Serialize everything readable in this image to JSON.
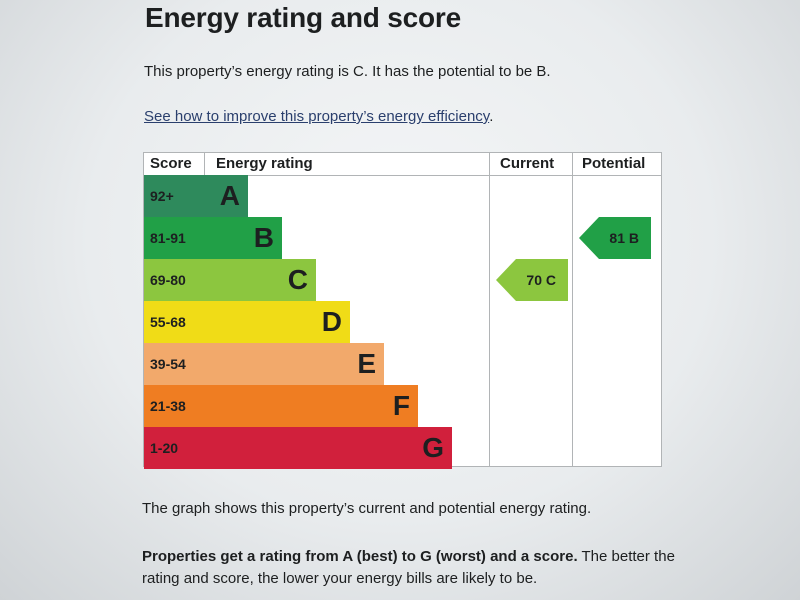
{
  "heading": "Energy rating and score",
  "rating_sentence": "This property’s energy rating is C. It has the potential to be B.",
  "improve_link": "See how to improve this property’s energy efficiency",
  "improve_link_suffix": ".",
  "chart": {
    "headers": {
      "score": "Score",
      "energy_rating": "Energy rating",
      "current": "Current",
      "potential": "Potential"
    },
    "bands": [
      {
        "score": "92+",
        "letter": "A",
        "color": "#2e8a5c"
      },
      {
        "score": "81-91",
        "letter": "B",
        "color": "#21a047"
      },
      {
        "score": "69-80",
        "letter": "C",
        "color": "#8cc63f"
      },
      {
        "score": "55-68",
        "letter": "D",
        "color": "#f0dc17"
      },
      {
        "score": "39-54",
        "letter": "E",
        "color": "#f2a96b"
      },
      {
        "score": "21-38",
        "letter": "F",
        "color": "#ef7d22"
      },
      {
        "score": "1-20",
        "letter": "G",
        "color": "#d1203c"
      }
    ],
    "current": {
      "label": "70 C",
      "band": "C",
      "color": "#8cc63f"
    },
    "potential": {
      "label": "81 B",
      "band": "B",
      "color": "#21a047"
    }
  },
  "graph_note": "The graph shows this property’s current and potential energy rating.",
  "rating_info_bold": "Properties get a rating from A (best) to G (worst) and a score.",
  "rating_info_rest": " The better the rating and score, the lower your energy bills are likely to be."
}
